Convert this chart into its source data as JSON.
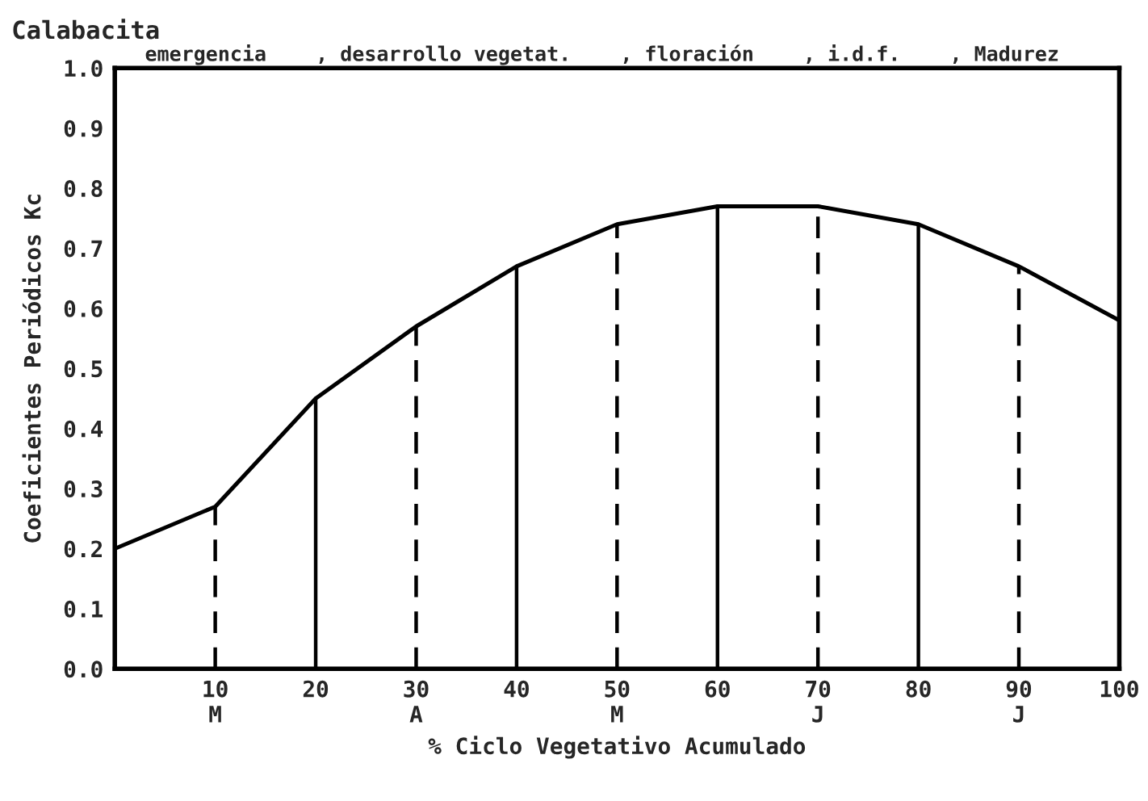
{
  "chart_data": {
    "type": "line",
    "title": "Calabacita",
    "xlabel": "% Ciclo Vegetativo Acumulado",
    "ylabel": "Coeficientes Periódicos Kc",
    "x": [
      0,
      10,
      20,
      30,
      40,
      50,
      60,
      70,
      80,
      90,
      100
    ],
    "series": [
      {
        "color": "#000000",
        "values": [
          0.2,
          0.27,
          0.45,
          0.57,
          0.67,
          0.74,
          0.77,
          0.77,
          0.74,
          0.67,
          0.58
        ]
      }
    ],
    "xlim": [
      0,
      100
    ],
    "ylim": [
      0,
      1
    ],
    "xticks": [
      {
        "value": 10,
        "label": "10\nM"
      },
      20,
      {
        "value": 30,
        "label": "30\nA"
      },
      40,
      {
        "value": 50,
        "label": "50\nM"
      },
      60,
      {
        "value": 70,
        "label": "70\nJ"
      },
      80,
      {
        "value": 90,
        "label": "90\nJ"
      },
      100
    ],
    "yticks": [
      {
        "value": 0,
        "label": "0.0"
      },
      {
        "value": 0.1,
        "label": "0.1"
      },
      {
        "value": 0.2,
        "label": "0.2"
      },
      {
        "value": 0.3,
        "label": "0.3"
      },
      {
        "value": 0.4,
        "label": "0.4"
      },
      {
        "value": 0.5,
        "label": "0.5"
      },
      {
        "value": 0.6,
        "label": "0.6"
      },
      {
        "value": 0.7,
        "label": "0.7"
      },
      {
        "value": 0.8,
        "label": "0.8"
      },
      {
        "value": 0.9,
        "label": "0.9"
      },
      {
        "value": 1,
        "label": "1.0"
      }
    ],
    "ref_lines": [
      {
        "axis": "x",
        "value": 10,
        "line_style": "dashed"
      },
      {
        "axis": "x",
        "value": 20,
        "line_style": "solid"
      },
      {
        "axis": "x",
        "value": 30,
        "line_style": "dashed"
      },
      {
        "axis": "x",
        "value": 40,
        "line_style": "solid"
      },
      {
        "axis": "x",
        "value": 50,
        "line_style": "dashed"
      },
      {
        "axis": "x",
        "value": 60,
        "line_style": "solid"
      },
      {
        "axis": "x",
        "value": 70,
        "line_style": "dashed"
      },
      {
        "axis": "x",
        "value": 80,
        "line_style": "solid"
      },
      {
        "axis": "x",
        "value": 90,
        "line_style": "dashed"
      }
    ],
    "annotations": [
      "emergencia",
      ", desarrollo vegetat.",
      ", floración",
      ", i.d.f.",
      ", Madurez"
    ],
    "grid": false,
    "marker": "none",
    "line_style": "solid"
  }
}
